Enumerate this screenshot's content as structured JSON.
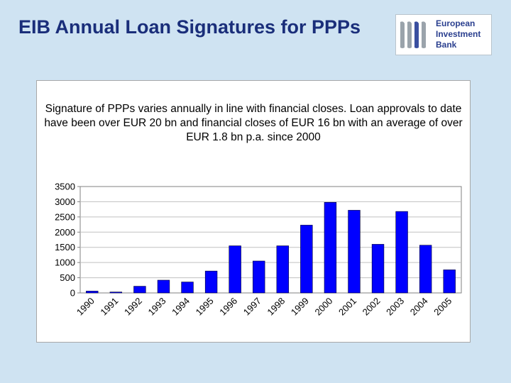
{
  "slide": {
    "title": "EIB Annual Loan Signatures for PPPs",
    "logo": {
      "line1": "European",
      "line2": "Investment",
      "line3": "Bank"
    },
    "caption": "Signature of PPPs varies annually in line with financial closes. Loan approvals to date have been over EUR 20 bn and financial closes of EUR 16 bn with an average of over EUR 1.8 bn p.a. since 2000"
  },
  "colors": {
    "background": "#cfe3f2",
    "title": "#1a2e7a",
    "bar": "#0000ff",
    "bar_outline": "#000033",
    "plot_area": "#ffffff",
    "grid": "#c0c0c0"
  },
  "chart_data": {
    "type": "bar",
    "categories": [
      "1990",
      "1991",
      "1992",
      "1993",
      "1994",
      "1995",
      "1996",
      "1997",
      "1998",
      "1999",
      "2000",
      "2001",
      "2002",
      "2003",
      "2004",
      "2005"
    ],
    "values": [
      60,
      30,
      220,
      420,
      360,
      720,
      1550,
      1050,
      1550,
      2230,
      2980,
      2720,
      1600,
      2680,
      1570,
      760
    ],
    "ylim": [
      0,
      3500
    ],
    "yticks": [
      "0",
      "500",
      "1000",
      "1500",
      "2000",
      "2500",
      "3000",
      "3500"
    ],
    "grid": true,
    "legend": "none",
    "title": "",
    "xlabel": "",
    "ylabel": ""
  }
}
